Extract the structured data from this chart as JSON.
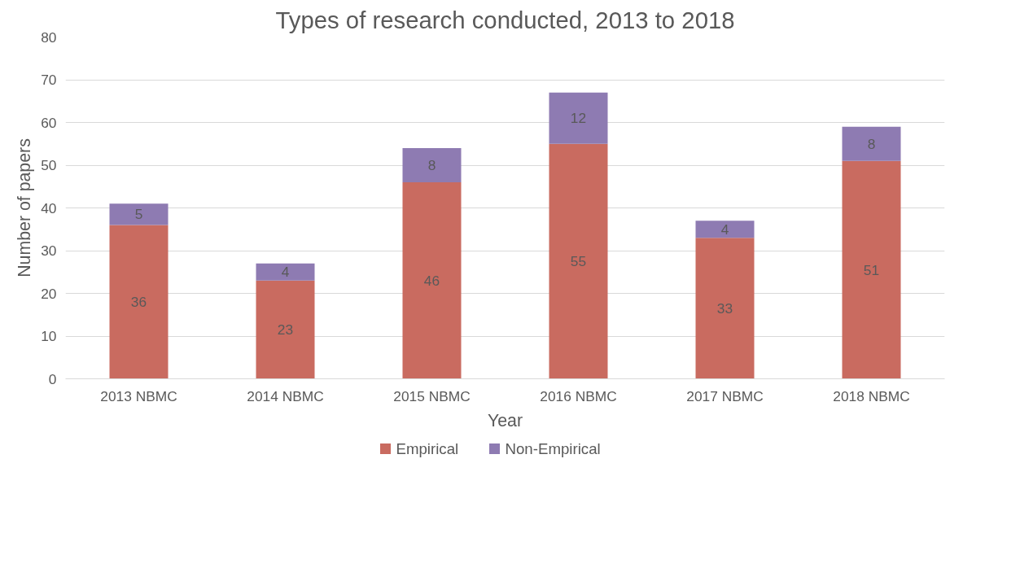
{
  "chart_data": {
    "type": "bar",
    "title": "Types of research conducted, 2013 to 2018",
    "xlabel": "Year",
    "ylabel": "Number of papers",
    "categories": [
      "2013 NBMC",
      "2014 NBMC",
      "2015 NBMC",
      "2016 NBMC",
      "2017 NBMC",
      "2018 NBMC"
    ],
    "series": [
      {
        "name": "Empirical",
        "color": "#c96b60",
        "values": [
          36,
          23,
          46,
          55,
          33,
          51
        ]
      },
      {
        "name": "Non-Empirical",
        "color": "#8e7bb2",
        "values": [
          5,
          4,
          8,
          12,
          4,
          8
        ]
      }
    ],
    "stacked": true,
    "ylim": [
      0,
      80
    ],
    "yticks": [
      0,
      10,
      20,
      30,
      40,
      50,
      60,
      70,
      80
    ],
    "grid": "y",
    "legend": "bottom",
    "data_labels": true
  }
}
